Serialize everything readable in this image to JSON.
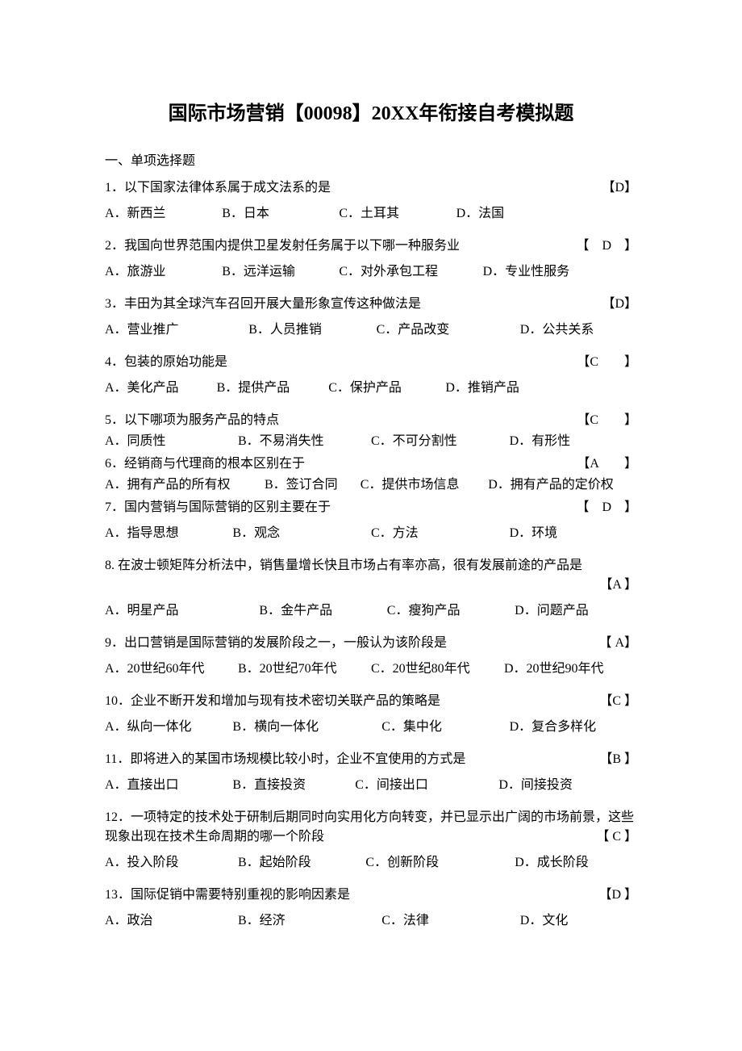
{
  "title": "国际市场营销【00098】20XX年衔接自考模拟题",
  "sectionHeading": "一、单项选择题",
  "questions": [
    {
      "num": "1",
      "text": "以下国家法律体系属于成文法系的是",
      "answer": "【D】",
      "options": [
        "A．新西兰",
        "B．日本",
        "C．土耳其",
        "D．法国"
      ],
      "widths": [
        "22%",
        "22%",
        "22%",
        "34%"
      ]
    },
    {
      "num": "2",
      "text": "我国向世界范围内提供卫星发射任务属于以下哪一种服务业",
      "answer": "【　D　】",
      "options": [
        "A．旅游业",
        "B．远洋运输",
        "C．对外承包工程",
        "D．专业性服务"
      ],
      "widths": [
        "22%",
        "22%",
        "27%",
        "29%"
      ]
    },
    {
      "num": "3",
      "text": "丰田为其全球汽车召回开展大量形象宣传这种做法是",
      "answer": "【D】",
      "options": [
        "A．营业推广",
        "B．人员推销",
        "C．产品改变",
        "D．公共关系"
      ],
      "widths": [
        "27%",
        "24%",
        "27%",
        "22%"
      ]
    },
    {
      "num": "4",
      "text": "包装的原始功能是",
      "answer": "【C　　】",
      "options": [
        "A．美化产品",
        "B．提供产品",
        "C．保护产品",
        "D．推销产品"
      ],
      "widths": [
        "21%",
        "21%",
        "22%",
        "36%"
      ]
    },
    {
      "num": "5",
      "text": "以下哪项为服务产品的特点",
      "answer": "【C　　】",
      "options": [
        "A．同质性",
        "B．不易消失性",
        "C．不可分割性",
        "D．有形性"
      ],
      "widths": [
        "25%",
        "25%",
        "26%",
        "24%"
      ],
      "tight": true
    },
    {
      "num": "6",
      "text": "经销商与代理商的根本区别在于",
      "answer": "【A　　】",
      "options": [
        "A．拥有产品的所有权",
        "B．签订合同",
        "C．提供市场信息",
        "D．拥有产品的定价权"
      ],
      "widths": [
        "30%",
        "18%",
        "24%",
        "28%"
      ],
      "tight": true
    },
    {
      "num": "7",
      "text": "国内营销与国际营销的区别主要在于",
      "answer": "【　D　】",
      "options": [
        "A．指导思想",
        "B．观念",
        "C．方法",
        "D．环境"
      ],
      "widths": [
        "24%",
        "26%",
        "26%",
        "24%"
      ]
    },
    {
      "num": "8",
      "text": "在波士顿矩阵分析法中，销售量增长快且市场占有率亦高，很有发展前途的产品是",
      "answer": "【A 】",
      "options": [
        "A．明星产品",
        "B．金牛产品",
        "C．瘦狗产品",
        "D．问题产品"
      ],
      "widths": [
        "29%",
        "24%",
        "24%",
        "23%"
      ],
      "answerBelow": true
    },
    {
      "num": "9",
      "text": "出口营销是国际营销的发展阶段之一，一般认为该阶段是",
      "answer": "【 A】",
      "options": [
        "A．20世纪60年代",
        "B．20世纪70年代",
        "C．20世纪80年代",
        "D．20世纪90年代"
      ],
      "widths": [
        "25%",
        "25%",
        "25%",
        "25%"
      ]
    },
    {
      "num": "10",
      "text": "企业不断开发和增加与现有技术密切关联产品的策略是",
      "answer": "【C 】",
      "options": [
        "A．纵向一体化",
        "B．横向一体化",
        "C．集中化",
        "D．复合多样化"
      ],
      "widths": [
        "24%",
        "28%",
        "24%",
        "24%"
      ]
    },
    {
      "num": "11",
      "text": "即将进入的某国市场规模比较小时，企业不宜使用的方式是",
      "answer": "【B 】",
      "options": [
        "A．直接出口",
        "B．直接投资",
        "C．间接出口",
        "D．间接投资"
      ],
      "widths": [
        "24%",
        "23%",
        "27%",
        "26%"
      ]
    },
    {
      "num": "12",
      "text": "一项特定的技术处于研制后期同时向实用化方向转变，并已显示出广阔的市场前景，这些现象出现在技术生命周期的哪一个阶段",
      "answer": "【 C 】",
      "options": [
        "A．投入阶段",
        "B．起始阶段",
        "C．创新阶段",
        "D．成长阶段"
      ],
      "widths": [
        "25%",
        "24%",
        "28%",
        "23%"
      ],
      "answerInline": true
    },
    {
      "num": "13",
      "text": "国际促销中需要特别重视的影响因素是",
      "answer": "【D 】",
      "options": [
        "A．政治",
        "B．经济",
        "C．法律",
        "D．文化"
      ],
      "widths": [
        "25%",
        "27%",
        "26%",
        "22%"
      ]
    }
  ]
}
